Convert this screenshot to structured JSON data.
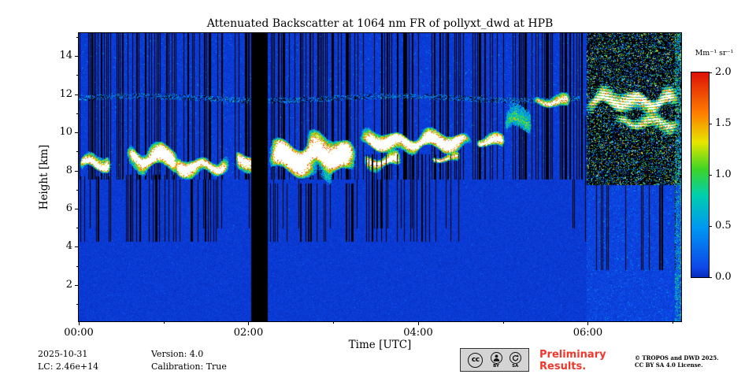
{
  "figure": {
    "title": "Attenuated Backscatter at 1064 nm FR of pollyxt_dwd at HPB",
    "xlabel": "Time [UTC]",
    "ylabel": "Height [km]",
    "colorbar_label": "Mm⁻¹ sr⁻¹"
  },
  "footer": {
    "date": "2025-10-31",
    "lc": "LC: 2.46e+14",
    "version": "Version: 4.0",
    "calibration": "Calibration: True",
    "preliminary_line1": "Preliminary",
    "preliminary_line2": "Results.",
    "copyright_line1": "© TROPOS and DWD 2025.",
    "copyright_line2": "CC BY SA 4.0 License.",
    "license_badge_labels": [
      "BY",
      "SA"
    ]
  },
  "colors": {
    "preliminary_red": "#f0372c",
    "background_low_blue": "#0e48e8",
    "missing_data_black": "#000000",
    "cloud_saturated_white": "#ffffff"
  },
  "chart_data": {
    "type": "heatmap",
    "title": "Attenuated Backscatter at 1064 nm FR of pollyxt_dwd at HPB",
    "xlabel": "Time [UTC]",
    "ylabel": "Height [km]",
    "x_ticks": [
      {
        "label": "00:00",
        "hour": 0
      },
      {
        "label": "02:00",
        "hour": 2
      },
      {
        "label": "04:00",
        "hour": 4
      },
      {
        "label": "06:00",
        "hour": 6
      }
    ],
    "x_minor_tick_hours": [
      1,
      3,
      5,
      7
    ],
    "x_range_hours": [
      0,
      7.1
    ],
    "y_ticks": [
      2,
      4,
      6,
      8,
      10,
      12,
      14
    ],
    "y_minor_ticks": [
      1,
      3,
      5,
      7,
      9,
      11,
      13,
      15
    ],
    "y_range_km": [
      0.1,
      15.2
    ],
    "colorbar": {
      "label": "Mm⁻¹ sr⁻¹",
      "range": [
        0.0,
        2.0
      ],
      "ticks": [
        {
          "label": "2.0",
          "value": 2.0
        },
        {
          "label": "1.5",
          "value": 1.5
        },
        {
          "label": "1.0",
          "value": 1.0
        },
        {
          "label": "0.5",
          "value": 0.5
        },
        {
          "label": "0.0",
          "value": 0.0
        }
      ],
      "colormap": "jet-like",
      "over_range_color": "white",
      "missing_color": "black"
    },
    "background_value_range": [
      0.0,
      0.1
    ],
    "data_gap_hours": [
      2.03,
      2.22
    ],
    "daylight_noise_start_hour": 5.98,
    "aerosol_layer": {
      "height_km": 11.8,
      "hours": [
        0,
        5.9
      ]
    },
    "cloud_layers": [
      {
        "t0": 0.0,
        "t1": 0.38,
        "h0": 7.7,
        "h1": 9.0,
        "d": 1.3,
        "wob": 0.22
      },
      {
        "t0": 0.55,
        "t1": 1.18,
        "h0": 7.8,
        "h1": 9.55,
        "d": 1.35,
        "wob": 0.28
      },
      {
        "t0": 1.1,
        "t1": 1.78,
        "h0": 7.55,
        "h1": 8.9,
        "d": 1.3,
        "wob": 0.22
      },
      {
        "t0": 1.84,
        "t1": 2.1,
        "h0": 7.9,
        "h1": 9.25,
        "d": 1.2,
        "wob": 0.15
      },
      {
        "t0": 2.22,
        "t1": 3.28,
        "h0": 7.35,
        "h1": 10.1,
        "d": 1.5,
        "wob": 0.3
      },
      {
        "t0": 3.28,
        "t1": 4.65,
        "h0": 8.85,
        "h1": 10.2,
        "d": 1.4,
        "wob": 0.22
      },
      {
        "t0": 3.35,
        "t1": 3.8,
        "h0": 7.9,
        "h1": 9.1,
        "d": 1.15,
        "wob": 0.15
      },
      {
        "t0": 4.15,
        "t1": 4.5,
        "h0": 8.3,
        "h1": 9.0,
        "d": 0.95,
        "wob": 0.12
      },
      {
        "t0": 4.68,
        "t1": 5.02,
        "h0": 9.1,
        "h1": 10.0,
        "d": 1.25,
        "wob": 0.15
      },
      {
        "t0": 5.0,
        "t1": 5.35,
        "h0": 9.2,
        "h1": 11.9,
        "d": 0.5,
        "wob": 0.2
      },
      {
        "t0": 5.35,
        "t1": 5.8,
        "h0": 11.15,
        "h1": 12.1,
        "d": 1.0,
        "wob": 0.15
      },
      {
        "t0": 5.95,
        "t1": 7.1,
        "h0": 10.9,
        "h1": 12.4,
        "d": 1.45,
        "wob": 0.25,
        "streak": true
      },
      {
        "t0": 6.3,
        "t1": 7.1,
        "h0": 9.9,
        "h1": 11.15,
        "d": 1.05,
        "wob": 0.2,
        "streak": true
      }
    ]
  }
}
